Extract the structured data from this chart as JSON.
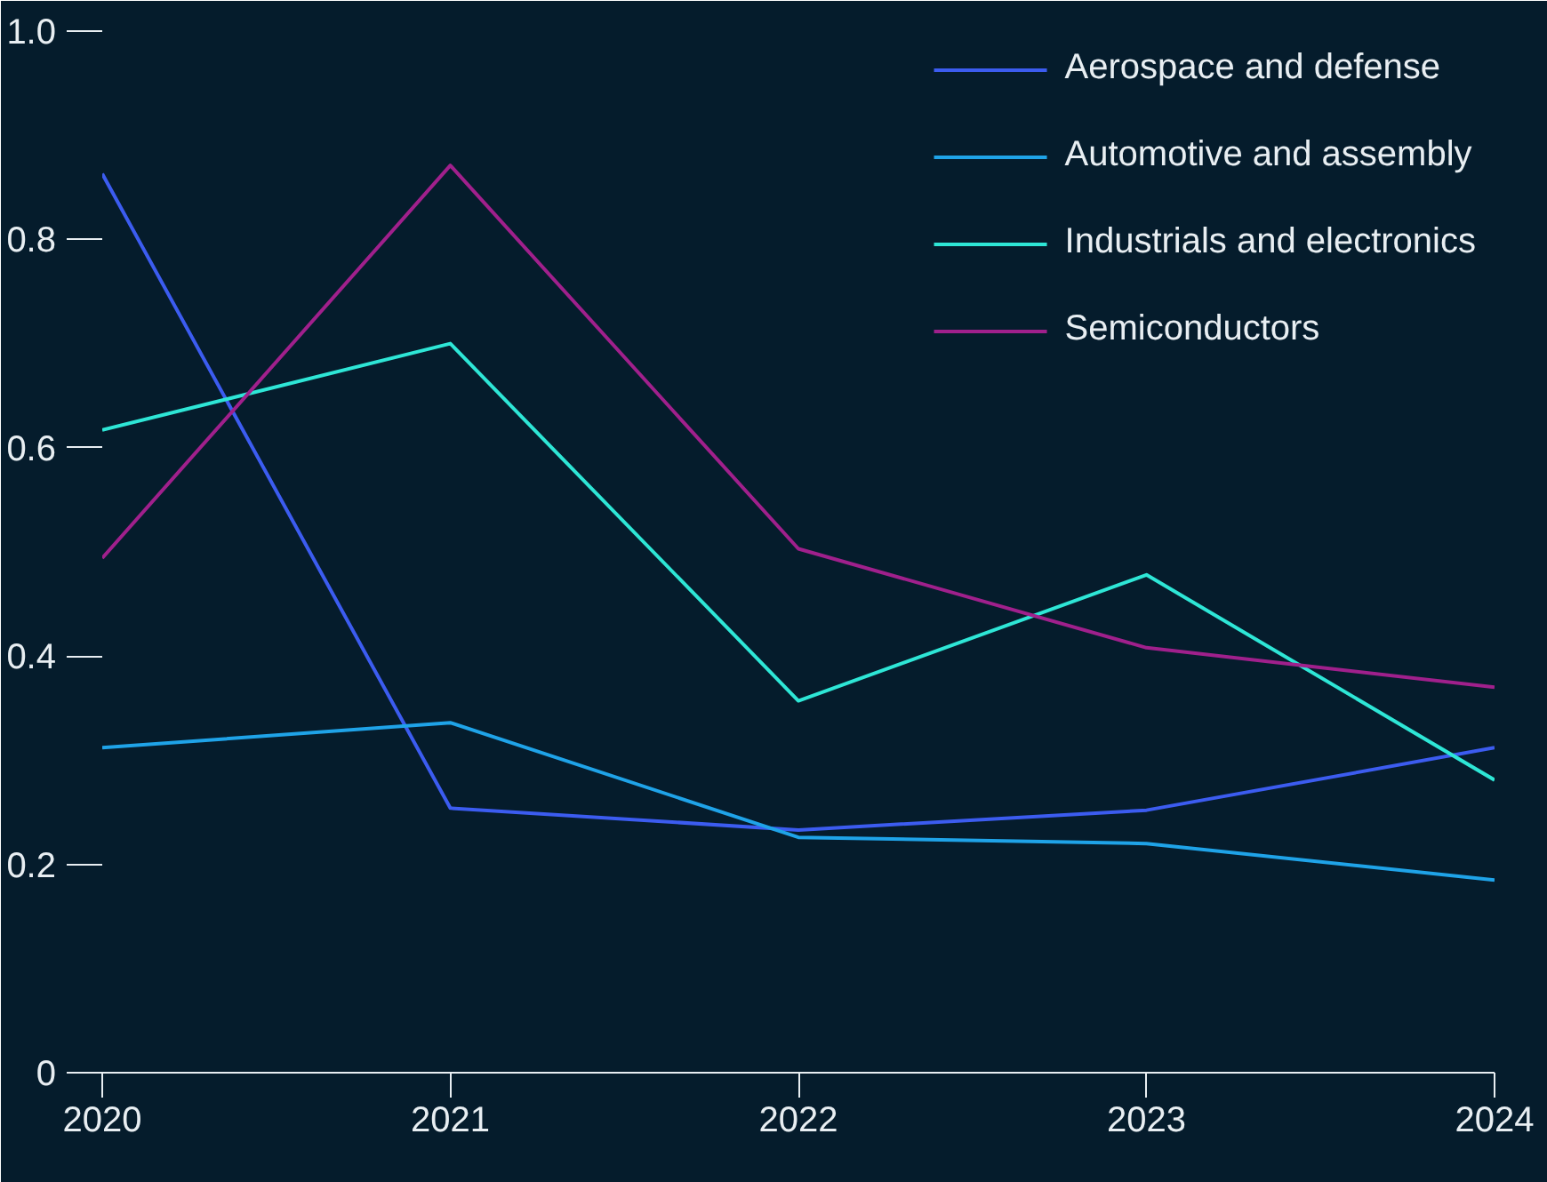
{
  "chart_data": {
    "type": "line",
    "categories": [
      "2020",
      "2021",
      "2022",
      "2023",
      "2024"
    ],
    "ylim": [
      0,
      1.0
    ],
    "yticks": [
      0,
      0.2,
      0.4,
      0.6,
      0.8,
      {
        "value": 1,
        "label": "1.0"
      }
    ],
    "legend": "top right",
    "grid": false,
    "series": [
      {
        "name": "Aerospace and defense",
        "color": "#3c5cf0",
        "values": [
          0.863,
          0.254,
          0.233,
          0.252,
          0.312
        ]
      },
      {
        "name": "Automotive and assembly",
        "color": "#1fa3e8",
        "values": [
          0.312,
          0.336,
          0.226,
          0.22,
          0.185
        ]
      },
      {
        "name": "Industrials and electronics",
        "color": "#2ee6d6",
        "values": [
          0.617,
          0.7,
          0.357,
          0.478,
          0.281
        ]
      },
      {
        "name": "Semiconductors",
        "color": "#a0208c",
        "values": [
          0.494,
          0.871,
          0.503,
          0.408,
          0.37
        ]
      }
    ]
  }
}
